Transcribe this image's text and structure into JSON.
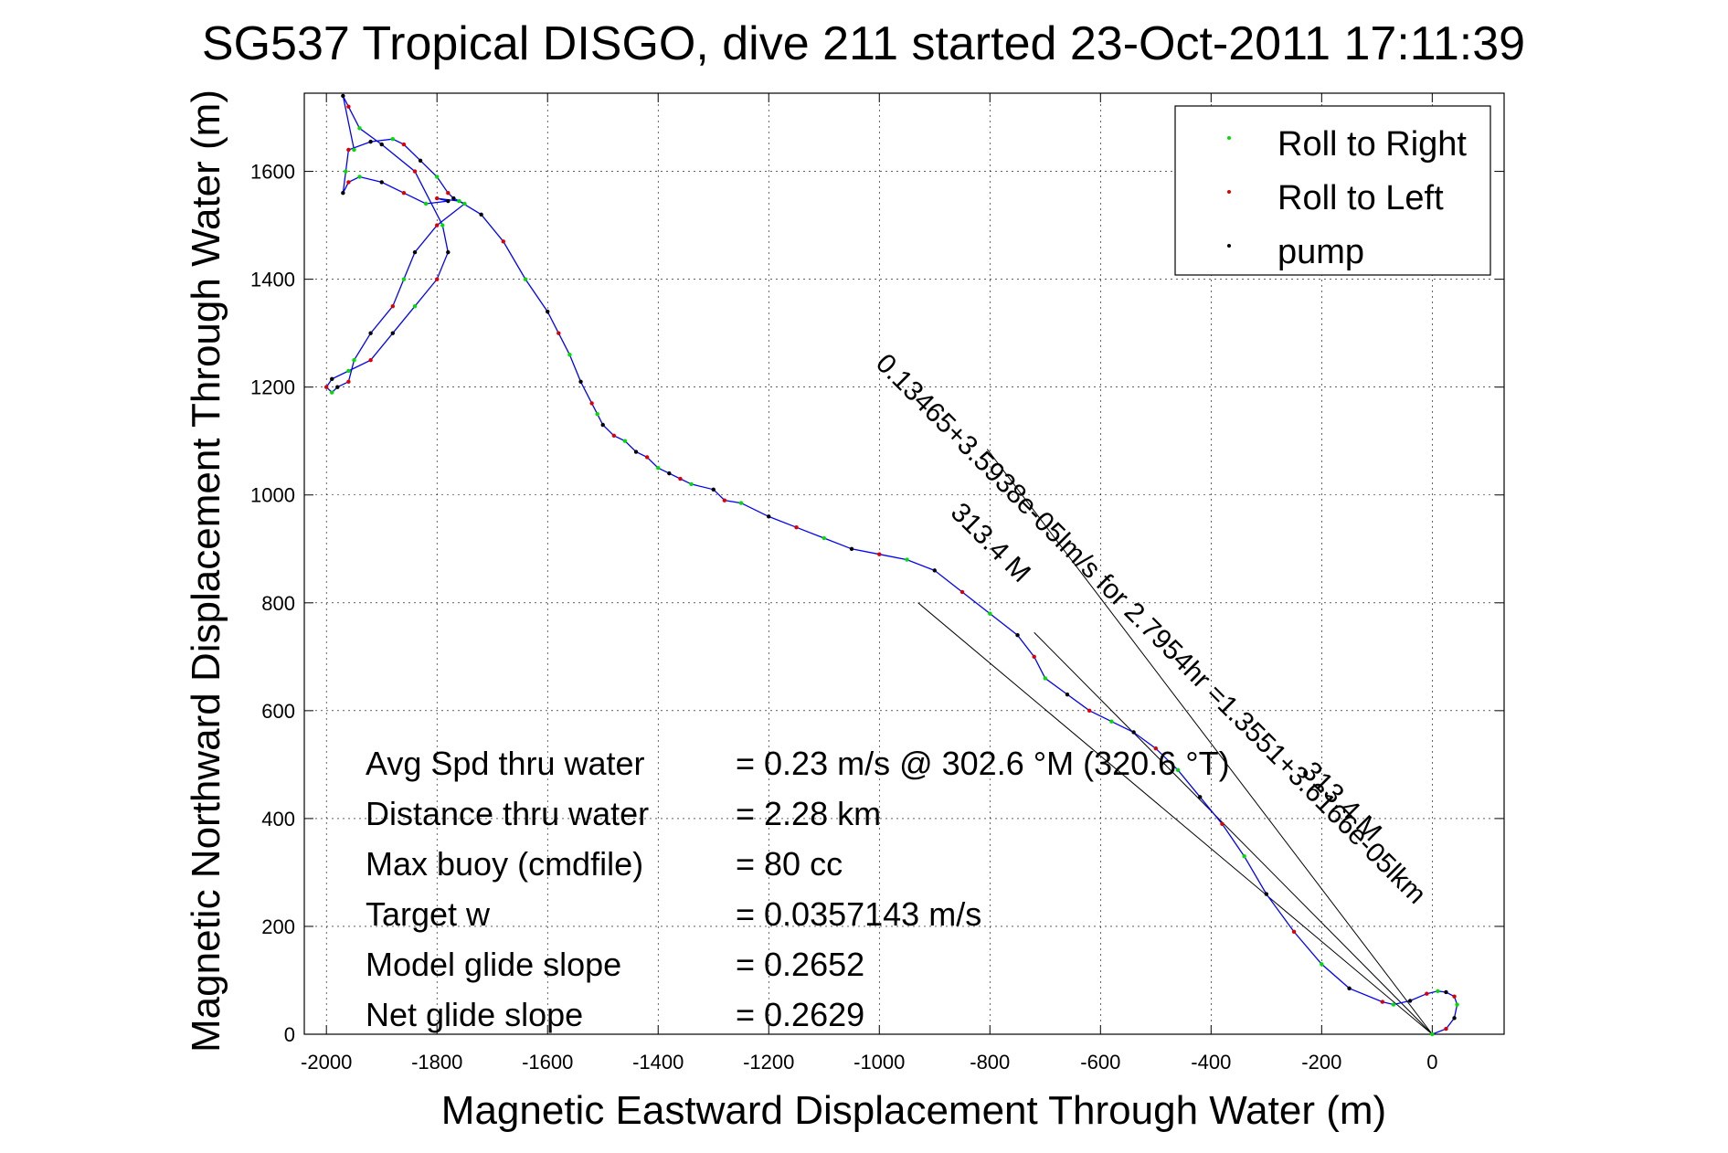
{
  "chart_data": {
    "type": "scatter",
    "title": "SG537 Tropical DISGO, dive 211 started 23-Oct-2011 17:11:39",
    "xlabel": "Magnetic Eastward Displacement Through Water (m)",
    "ylabel": "Magnetic Northward Displacement Through Water (m)",
    "xlim": [
      -2040,
      130
    ],
    "ylim": [
      0,
      1745
    ],
    "x_ticks": [
      -2000,
      -1800,
      -1600,
      -1400,
      -1200,
      -1000,
      -800,
      -600,
      -400,
      -200,
      0
    ],
    "y_ticks": [
      0,
      200,
      400,
      600,
      800,
      1000,
      1200,
      1400,
      1600
    ],
    "x_tick_labels": [
      "-2000",
      "-1800",
      "-1600",
      "-1400",
      "-1200",
      "-1000",
      "-800",
      "-600",
      "-400",
      "-200",
      "0"
    ],
    "y_tick_labels": [
      "0",
      "200",
      "400",
      "600",
      "800",
      "1000",
      "1200",
      "1400",
      "1600"
    ],
    "grid": true,
    "legend_position": "top-right",
    "colors": {
      "track": "#0000ff",
      "roll_right": "#00dd00",
      "roll_left": "#dd0000",
      "pump": "#000000",
      "lines": "#000000"
    },
    "legend": [
      {
        "label": "Roll to Right",
        "color": "#00dd00"
      },
      {
        "label": "Roll to Left",
        "color": "#dd0000"
      },
      {
        "label": "pump",
        "color": "#000000"
      }
    ],
    "track": {
      "x": [
        0,
        25,
        40,
        45,
        40,
        25,
        10,
        -10,
        -40,
        -70,
        -90,
        -150,
        -200,
        -250,
        -300,
        -340,
        -380,
        -420,
        -460,
        -500,
        -540,
        -580,
        -620,
        -660,
        -700,
        -720,
        -750,
        -800,
        -850,
        -900,
        -950,
        -1000,
        -1050,
        -1100,
        -1150,
        -1200,
        -1250,
        -1280,
        -1300,
        -1340,
        -1360,
        -1380,
        -1400,
        -1420,
        -1440,
        -1460,
        -1480,
        -1500,
        -1510,
        -1520,
        -1540,
        -1560,
        -1580,
        -1600,
        -1640,
        -1680,
        -1720,
        -1760,
        -1800,
        -1780,
        -1820,
        -1860,
        -1900,
        -1940,
        -1960,
        -1970,
        -1965,
        -1960,
        -1920,
        -1880,
        -1860,
        -1830,
        -1800,
        -1780,
        -1770,
        -1750,
        -1800,
        -1840,
        -1860,
        -1880,
        -1920,
        -1950,
        -1960,
        -1980,
        -1990,
        -2000,
        -1990,
        -1960,
        -1920,
        -1880,
        -1840,
        -1800,
        -1780,
        -1790,
        -1840,
        -1900,
        -1940,
        -1960,
        -1970,
        -1950
      ],
      "y": [
        0,
        10,
        30,
        55,
        70,
        78,
        80,
        75,
        62,
        55,
        60,
        85,
        130,
        190,
        260,
        330,
        390,
        440,
        490,
        530,
        560,
        580,
        600,
        630,
        660,
        700,
        740,
        780,
        820,
        860,
        880,
        890,
        900,
        920,
        940,
        960,
        985,
        990,
        1010,
        1020,
        1030,
        1040,
        1050,
        1070,
        1080,
        1100,
        1110,
        1130,
        1150,
        1170,
        1210,
        1260,
        1300,
        1340,
        1400,
        1470,
        1520,
        1545,
        1550,
        1545,
        1540,
        1560,
        1580,
        1590,
        1580,
        1560,
        1600,
        1640,
        1655,
        1660,
        1650,
        1620,
        1590,
        1560,
        1550,
        1540,
        1500,
        1450,
        1400,
        1350,
        1300,
        1250,
        1210,
        1200,
        1190,
        1200,
        1215,
        1230,
        1250,
        1300,
        1350,
        1400,
        1450,
        1500,
        1600,
        1650,
        1680,
        1720,
        1740,
        1640
      ]
    },
    "lines": [
      {
        "x": [
          0,
          -720
        ],
        "y": [
          0,
          745
        ]
      },
      {
        "x": [
          0,
          -805
        ],
        "y": [
          0,
          1085
        ]
      },
      {
        "x": [
          0,
          -930
        ],
        "y": [
          0,
          800
        ]
      }
    ],
    "annotations": [
      {
        "text": "0.13465+3.5938e-05lm/s for 2.7954hr =1.3551+3.6166e-05lkm",
        "x": -520,
        "y": 740,
        "angle": 45
      },
      {
        "text": "313.4 M",
        "x": -175,
        "y": 420,
        "angle": 45
      },
      {
        "text": "313.4 M",
        "x": -810,
        "y": 900,
        "angle": 45
      }
    ],
    "stats": [
      {
        "label": "Avg Spd thru water",
        "value": "=  0.23 m/s @ 302.6  °M (320.6 °T)"
      },
      {
        "label": "Distance thru water",
        "value": "=  2.28 km"
      },
      {
        "label": "Max buoy (cmdfile)",
        "value": "= 80 cc"
      },
      {
        "label": "Target w",
        "value": "= 0.0357143 m/s"
      },
      {
        "label": "Model glide slope",
        "value": "= 0.2652"
      },
      {
        "label": "Net glide slope",
        "value": "= 0.2629"
      }
    ]
  }
}
